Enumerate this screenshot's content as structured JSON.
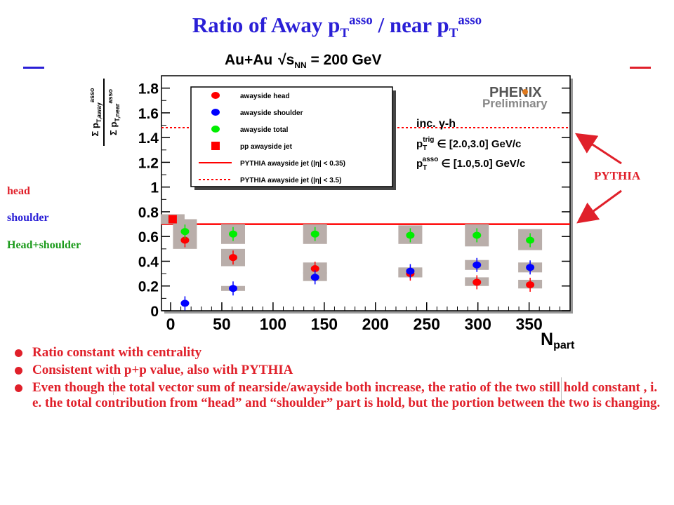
{
  "slide": {
    "title_main": "Ratio of Away p",
    "title_sub1": "T",
    "title_sup1": "asso",
    "title_mid": " / near p",
    "title_sub2": "T",
    "title_sup2": "asso",
    "accent_color": "#2a1fd6",
    "text_color": "#e0202a"
  },
  "side_labels": [
    {
      "text": "head",
      "color": "#e0202a"
    },
    {
      "text": "shoulder",
      "color": "#2a1fd6"
    },
    {
      "text": "Head+shoulder",
      "color": "#1a9a1a"
    }
  ],
  "pythia_label": "PYTHIA",
  "bullets": [
    "Ratio constant with centrality",
    "Consistent with p+p value, also with PYTHIA",
    "Even though the total vector sum of nearside/awayside both increase, the ratio of the two still hold constant , i. e. the total contribution from “head” and “shoulder” part is hold, but the portion between the two is changing."
  ],
  "chart_data": {
    "type": "scatter",
    "title": "Au+Au √sNN = 200 GeV",
    "xlabel": "N_part",
    "ylabel": "Σ p_T,away^asso / Σ p_T,near^asso",
    "xlim": [
      0,
      390
    ],
    "ylim": [
      0,
      1.9
    ],
    "x_ticks": [
      "0",
      "50",
      "100",
      "150",
      "200",
      "250",
      "300",
      "350"
    ],
    "y_ticks": [
      "0",
      "0.2",
      "0.4",
      "0.6",
      "0.8",
      "1",
      "1.2",
      "1.4",
      "1.6",
      "1.8"
    ],
    "logo": "PHENIX",
    "logo_sub": "Preliminary",
    "annotations": [
      "inc. γ-h",
      "p_T^trig ∈ [2.0,3.0] GeV/c",
      "p_T^asso ∈ [1.0,5.0] GeV/c"
    ],
    "legend": [
      "awayside head",
      "awayside shoulder",
      "awayside total",
      "pp awayside jet",
      "PYTHIA awayside jet (|η| < 0.35)",
      "PYTHIA awayside jet (|η| < 3.5)"
    ],
    "series": [
      {
        "name": "awayside head",
        "color": "#ff0000",
        "marker": "circle",
        "x": [
          14,
          61,
          141,
          234,
          299,
          351
        ],
        "y": [
          0.57,
          0.43,
          0.34,
          0.3,
          0.23,
          0.21
        ]
      },
      {
        "name": "awayside shoulder",
        "color": "#0000ff",
        "marker": "circle",
        "x": [
          14,
          61,
          141,
          234,
          299,
          351
        ],
        "y": [
          0.06,
          0.18,
          0.27,
          0.32,
          0.37,
          0.35
        ]
      },
      {
        "name": "awayside total",
        "color": "#00ee00",
        "marker": "circle",
        "x": [
          14,
          61,
          141,
          234,
          299,
          351
        ],
        "y": [
          0.64,
          0.62,
          0.62,
          0.61,
          0.61,
          0.57
        ]
      },
      {
        "name": "pp awayside jet",
        "color": "#ff0000",
        "marker": "square",
        "x": [
          2
        ],
        "y": [
          0.74
        ]
      }
    ],
    "lines": [
      {
        "name": "PYTHIA awayside jet (|η| < 0.35)",
        "y": 0.7,
        "style": "solid",
        "color": "#ff0000"
      },
      {
        "name": "PYTHIA awayside jet (|η| < 3.5)",
        "y": 1.48,
        "style": "dotted",
        "color": "#ff0000"
      }
    ]
  }
}
